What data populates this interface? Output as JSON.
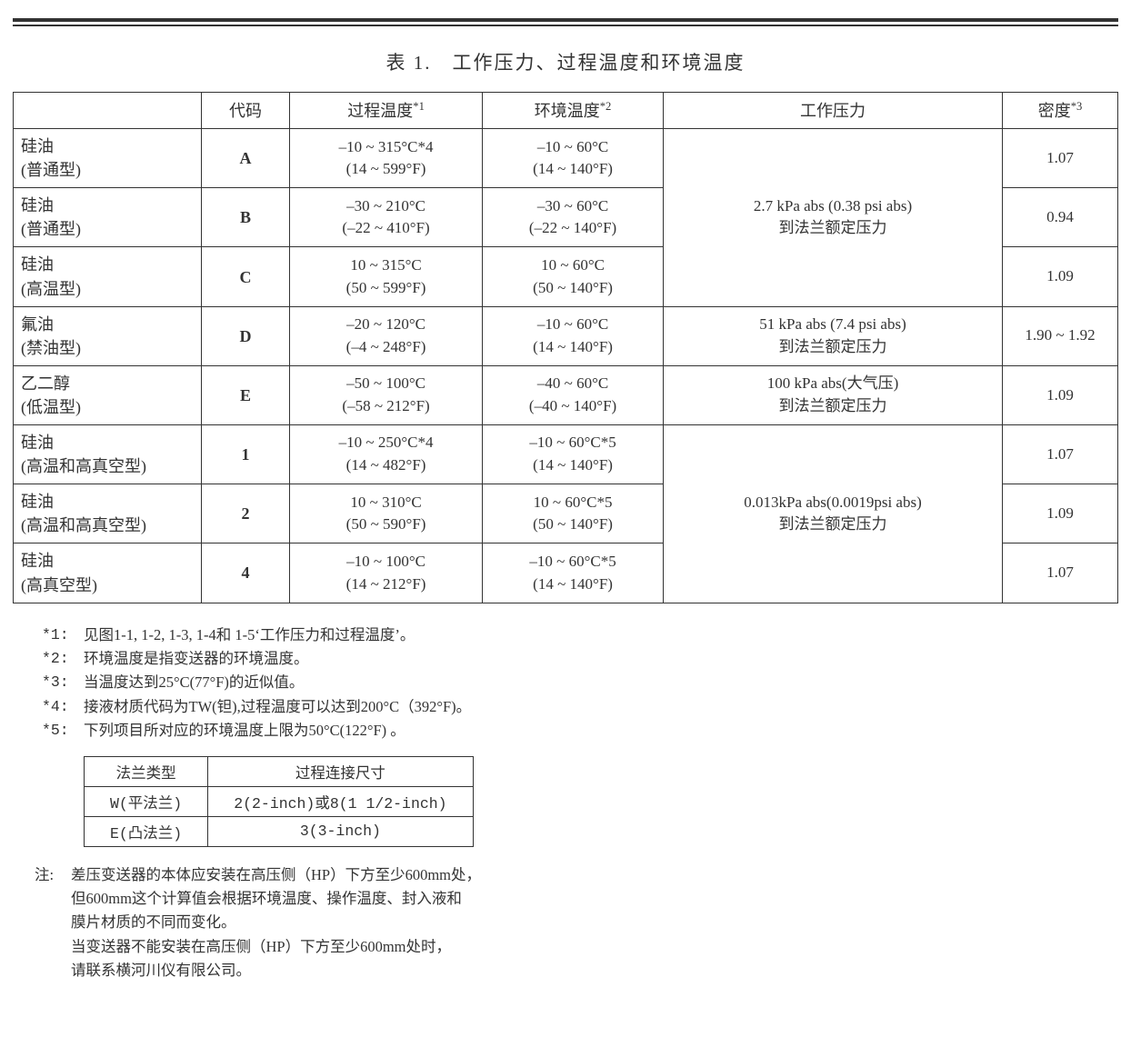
{
  "title": "表 1.　工作压力、过程温度和环境温度",
  "headers": {
    "blank": "",
    "code": "代码",
    "proc_temp": "过程温度",
    "proc_temp_sup": "*1",
    "amb_temp": "环境温度",
    "amb_temp_sup": "*2",
    "pressure": "工作压力",
    "density": "密度",
    "density_sup": "*3"
  },
  "rows": [
    {
      "name": "硅油\n(普通型)",
      "code": "A",
      "proc": "–10 ~ 315°C*4\n(14 ~ 599°F)",
      "amb": "–10 ~ 60°C\n(14 ~ 140°F)",
      "density": "1.07"
    },
    {
      "name": "硅油\n(普通型)",
      "code": "B",
      "proc": "–30 ~ 210°C\n(–22 ~ 410°F)",
      "amb": "–30 ~ 60°C\n(–22 ~ 140°F)",
      "density": "0.94"
    },
    {
      "name": "硅油\n(高温型)",
      "code": "C",
      "proc": "10 ~ 315°C\n(50 ~ 599°F)",
      "amb": "10 ~ 60°C\n(50 ~ 140°F)",
      "density": "1.09"
    },
    {
      "name": "氟油\n(禁油型)",
      "code": "D",
      "proc": "–20 ~ 120°C\n(–4 ~ 248°F)",
      "amb": "–10 ~ 60°C\n(14 ~ 140°F)",
      "density": "1.90 ~ 1.92"
    },
    {
      "name": "乙二醇\n(低温型)",
      "code": "E",
      "proc": "–50 ~ 100°C\n(–58 ~ 212°F)",
      "amb": "–40 ~ 60°C\n(–40 ~ 140°F)",
      "density": "1.09"
    },
    {
      "name": "硅油\n(高温和高真空型)",
      "code": "1",
      "proc": "–10 ~ 250°C*4\n(14 ~ 482°F)",
      "amb": "–10 ~ 60°C*5\n(14 ~ 140°F)",
      "density": "1.07"
    },
    {
      "name": "硅油\n(高温和高真空型)",
      "code": "2",
      "proc": "10 ~ 310°C\n(50 ~ 590°F)",
      "amb": "10 ~ 60°C*5\n(50 ~ 140°F)",
      "density": "1.09"
    },
    {
      "name": "硅油\n(高真空型)",
      "code": "4",
      "proc": "–10 ~ 100°C\n(14 ~ 212°F)",
      "amb": "–10 ~ 60°C*5\n(14 ~ 140°F)",
      "density": "1.07"
    }
  ],
  "pressure_groups": [
    {
      "text": "2.7 kPa abs (0.38 psi abs)\n到法兰额定压力",
      "rowspan": 3
    },
    {
      "text": "51 kPa abs (7.4 psi abs)\n到法兰额定压力",
      "rowspan": 1
    },
    {
      "text": "100 kPa abs(大气压)\n到法兰额定压力",
      "rowspan": 1
    },
    {
      "text": "0.013kPa abs(0.0019psi abs)\n到法兰额定压力",
      "rowspan": 3
    }
  ],
  "footnotes": [
    {
      "lbl": "*1:",
      "txt": "见图1-1, 1-2, 1-3, 1-4和 1-5‘工作压力和过程温度’。"
    },
    {
      "lbl": "*2:",
      "txt": "环境温度是指变送器的环境温度。"
    },
    {
      "lbl": "*3:",
      "txt": "当温度达到25°C(77°F)的近似值。"
    },
    {
      "lbl": "*4:",
      "txt": "接液材质代码为TW(钽),过程温度可以达到200°C（392°F)。"
    },
    {
      "lbl": "*5:",
      "txt": "下列项目所对应的环境温度上限为50°C(122°F) 。"
    }
  ],
  "subtable": {
    "headers": [
      "法兰类型",
      "过程连接尺寸"
    ],
    "rows": [
      [
        "W(平法兰)",
        "2(2-inch)或8(1 1/2-inch)"
      ],
      [
        "E(凸法兰)",
        "3(3-inch)"
      ]
    ]
  },
  "note": {
    "lbl": "注:",
    "txt": "差压变送器的本体应安装在高压侧（HP）下方至少600mm处，\n但600mm这个计算值会根据环境温度、操作温度、封入液和\n膜片材质的不同而变化。\n当变送器不能安装在高压侧（HP）下方至少600mm处时，\n请联系横河川仪有限公司。"
  }
}
